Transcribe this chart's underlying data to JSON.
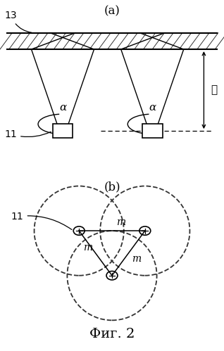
{
  "title_a": "(a)",
  "title_b": "(b)",
  "caption": "Фиг. 2",
  "label_13": "13",
  "label_11_a": "11",
  "label_11_b": "11",
  "label_alpha1": "α",
  "label_alpha2": "α",
  "label_ell": "ℓ",
  "label_m1": "m",
  "label_m2": "m",
  "label_m3": "m",
  "bg_color": "#ffffff",
  "line_color": "#000000"
}
